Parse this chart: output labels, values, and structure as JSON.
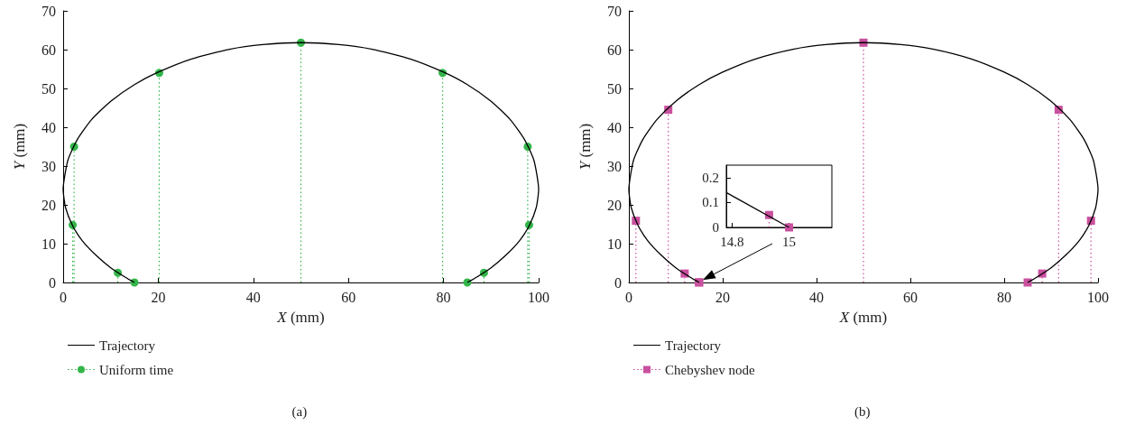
{
  "chart_data": [
    {
      "type": "line",
      "xlabel": "X (mm)",
      "ylabel": "Y (mm)",
      "xlim": [
        0,
        100
      ],
      "ylim": [
        0,
        70
      ],
      "xticks": [
        0,
        20,
        40,
        60,
        80,
        100
      ],
      "yticks": [
        0,
        10,
        20,
        30,
        40,
        50,
        60,
        70
      ],
      "legend": "bottom left",
      "annotations": [
        "(a)"
      ],
      "series": [
        {
          "name": "Trajectory",
          "type": "line",
          "color": "#000000",
          "x": [
            15,
            13,
            10,
            7,
            4,
            2,
            0.5,
            0,
            1,
            3,
            6,
            10,
            15,
            20,
            27,
            35,
            42,
            50,
            58,
            65,
            73,
            80,
            85,
            90,
            94,
            97,
            99,
            100,
            99.5,
            98,
            96,
            93,
            90,
            87,
            85
          ],
          "values": [
            0,
            1.4,
            3.8,
            6.9,
            10.8,
            14.6,
            19.3,
            24,
            31.5,
            36.9,
            42,
            46.7,
            51,
            54.2,
            57.6,
            60.1,
            61.3,
            61.8,
            61.3,
            60.1,
            57.6,
            54.2,
            51,
            46.7,
            42,
            36.9,
            31.5,
            24,
            19.3,
            14.6,
            10.8,
            6.9,
            3.8,
            1.4,
            0
          ]
        },
        {
          "name": "Uniform time",
          "type": "lollipop",
          "color": "#33b54a",
          "marker": "circle",
          "line_style": "dotted",
          "x": [
            2,
            2.3,
            11.5,
            15,
            20.2,
            50,
            79.8,
            85,
            88.5,
            97.7,
            98
          ],
          "values": [
            14.8,
            35,
            2.5,
            0,
            54,
            61.8,
            54,
            0,
            2.5,
            35,
            14.8
          ]
        }
      ]
    },
    {
      "type": "line",
      "xlabel": "X (mm)",
      "ylabel": "Y (mm)",
      "xlim": [
        0,
        100
      ],
      "ylim": [
        0,
        70
      ],
      "xticks": [
        0,
        20,
        40,
        60,
        80,
        100
      ],
      "yticks": [
        0,
        10,
        20,
        30,
        40,
        50,
        60,
        70
      ],
      "legend": "bottom left",
      "annotations": [
        "(b)"
      ],
      "series": [
        {
          "name": "Trajectory",
          "type": "line",
          "color": "#000000",
          "x": [
            15,
            13,
            10,
            7,
            4,
            2,
            0.5,
            0,
            1,
            3,
            6,
            10,
            15,
            20,
            27,
            35,
            42,
            50,
            58,
            65,
            73,
            80,
            85,
            90,
            94,
            97,
            99,
            100,
            99.5,
            98,
            96,
            93,
            90,
            87,
            85
          ],
          "values": [
            0,
            1.4,
            3.8,
            6.9,
            10.8,
            14.6,
            19.3,
            24,
            31.5,
            36.9,
            42,
            46.7,
            51,
            54.2,
            57.6,
            60.1,
            61.3,
            61.8,
            61.3,
            60.1,
            57.6,
            54.2,
            51,
            46.7,
            42,
            36.9,
            31.5,
            24,
            19.3,
            14.6,
            10.8,
            6.9,
            3.8,
            1.4,
            0
          ]
        },
        {
          "name": "Chebyshev node",
          "type": "lollipop",
          "color": "#c9509e",
          "marker": "square",
          "line_style": "dotted",
          "x": [
            1.5,
            8.4,
            11.9,
            14.93,
            15,
            50,
            85,
            85.07,
            88.1,
            91.6,
            98.5
          ],
          "values": [
            15.9,
            44.5,
            2.3,
            0.05,
            0,
            61.8,
            0,
            null,
            2.3,
            44.5,
            15.9
          ]
        }
      ]
    },
    {
      "type": "line",
      "xlim": [
        14.78,
        15.15
      ],
      "ylim": [
        0,
        0.25
      ],
      "xticks": [
        14.8,
        15
      ],
      "yticks": [
        0,
        0.1,
        0.2
      ],
      "series": [
        {
          "type": "line",
          "color": "#000000",
          "x": [
            14.78,
            15
          ],
          "values": [
            0.14,
            0
          ]
        },
        {
          "type": "lollipop",
          "color": "#c9509e",
          "marker": "square",
          "line_style": "dotted",
          "x": [
            14.93,
            15
          ],
          "values": [
            0.05,
            0
          ]
        }
      ]
    }
  ]
}
